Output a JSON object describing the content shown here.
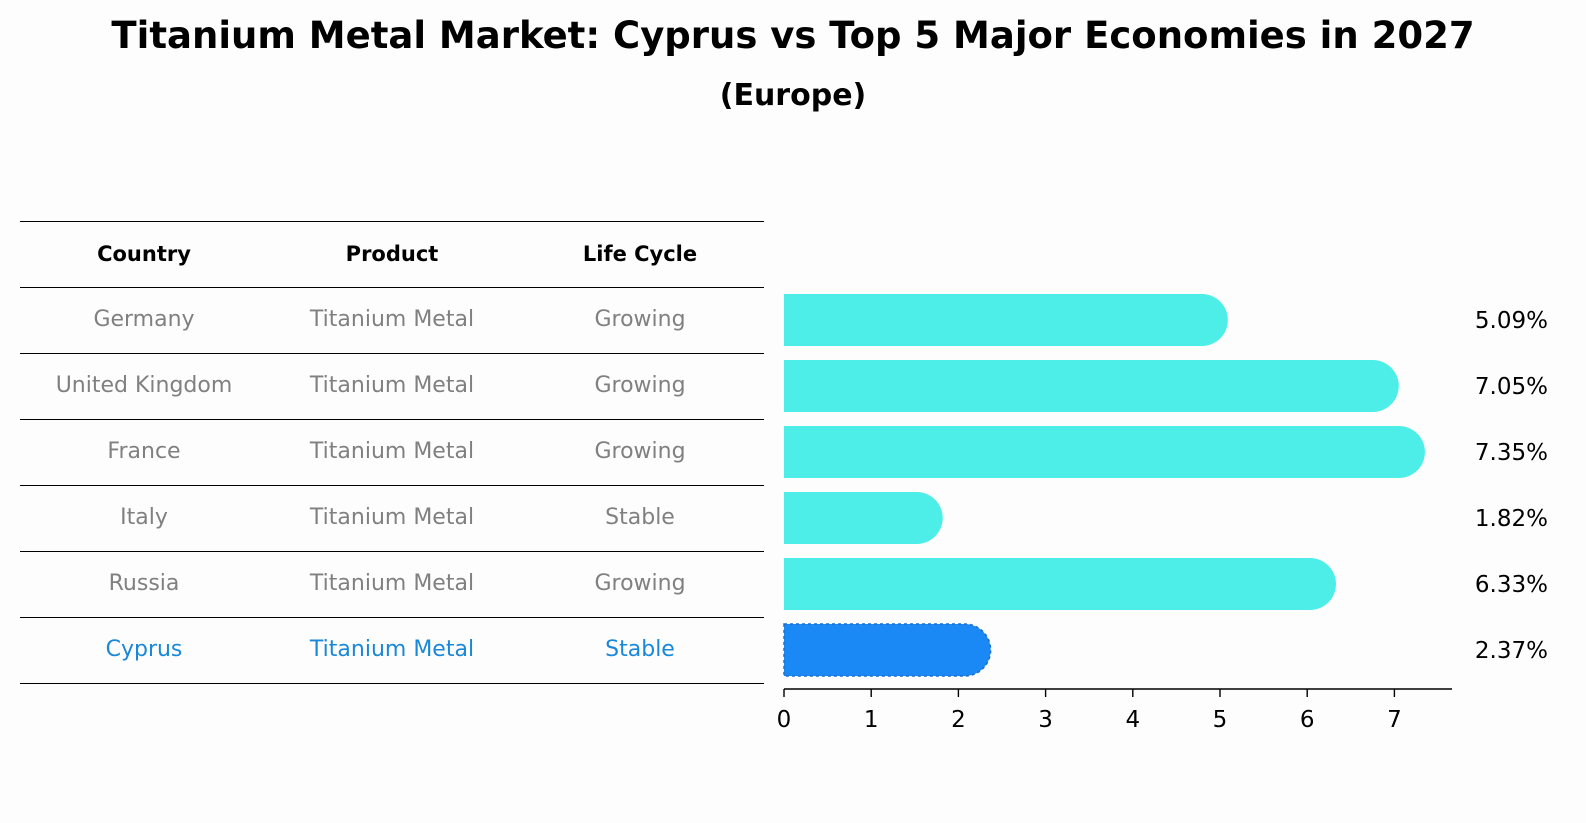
{
  "title": "Titanium Metal Market: Cyprus vs Top 5 Major Economies in 2027",
  "subtitle": "(Europe)",
  "table": {
    "headers": [
      "Country",
      "Product",
      "Life Cycle"
    ],
    "rows": [
      {
        "country": "Germany",
        "product": "Titanium Metal",
        "life_cycle": "Growing"
      },
      {
        "country": "United Kingdom",
        "product": "Titanium Metal",
        "life_cycle": "Growing"
      },
      {
        "country": "France",
        "product": "Titanium Metal",
        "life_cycle": "Growing"
      },
      {
        "country": "Italy",
        "product": "Titanium Metal",
        "life_cycle": "Stable"
      },
      {
        "country": "Russia",
        "product": "Titanium Metal",
        "life_cycle": "Growing"
      },
      {
        "country": "Cyprus",
        "product": "Titanium Metal",
        "life_cycle": "Stable"
      }
    ]
  },
  "colors": {
    "bar": "#4deee8",
    "highlight_bar": "#1a88f5",
    "highlight_text": "#1a88d8",
    "row_text": "#808080"
  },
  "chart_data": {
    "type": "bar",
    "orientation": "horizontal",
    "categories": [
      "Germany",
      "United Kingdom",
      "France",
      "Italy",
      "Russia",
      "Cyprus"
    ],
    "values": [
      5.09,
      7.05,
      7.35,
      1.82,
      6.33,
      2.37
    ],
    "value_labels": [
      "5.09%",
      "7.05%",
      "7.35%",
      "1.82%",
      "6.33%",
      "2.37%"
    ],
    "highlight": "Cyprus",
    "xticks": [
      "0",
      "1",
      "2",
      "3",
      "4",
      "5",
      "6",
      "7"
    ],
    "xlim": [
      0,
      7.7
    ],
    "grid": false
  }
}
